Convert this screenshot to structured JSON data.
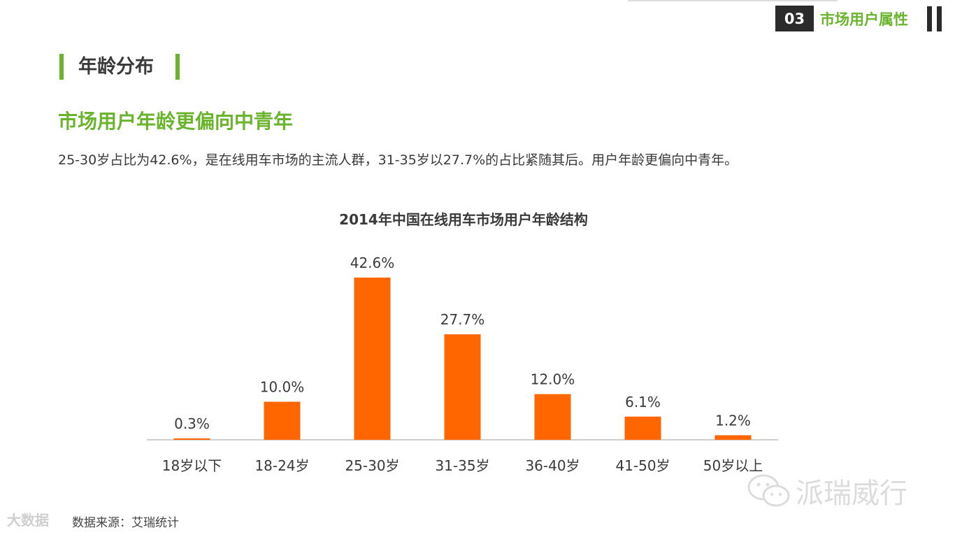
{
  "header": {
    "section_number": "03",
    "section_title": "市场用户属性",
    "pause_icon": "pause-icon"
  },
  "heading": "年龄分布",
  "subtitle": "市场用户年龄更偏向中青年",
  "description": "25-30岁占比为42.6%，是在线用车市场的主流人群，31-35岁以27.7%的占比紧随其后。用户年龄更偏向中青年。",
  "watermark": {
    "icon": "wechat-icon",
    "text": "派瑞威行"
  },
  "source": "数据来源：艾瑞统计",
  "corner_logo": "大数据",
  "colors": {
    "accent_green": "#6ab42d",
    "bar": "#ff6600",
    "dark": "#2b2b2b"
  },
  "chart_data": {
    "type": "bar",
    "title": "2014年中国在线用车市场用户年龄结构",
    "categories": [
      "18岁以下",
      "18-24岁",
      "25-30岁",
      "31-35岁",
      "36-40岁",
      "41-50岁",
      "50岁以上"
    ],
    "values": [
      0.3,
      10.0,
      42.6,
      27.7,
      12.0,
      6.1,
      1.2
    ],
    "value_labels": [
      "0.3%",
      "10.0%",
      "42.6%",
      "27.7%",
      "12.0%",
      "6.1%",
      "1.2%"
    ],
    "xlabel": "",
    "ylabel": "",
    "ylim": [
      0,
      45
    ],
    "grid": false,
    "legend": "none"
  }
}
